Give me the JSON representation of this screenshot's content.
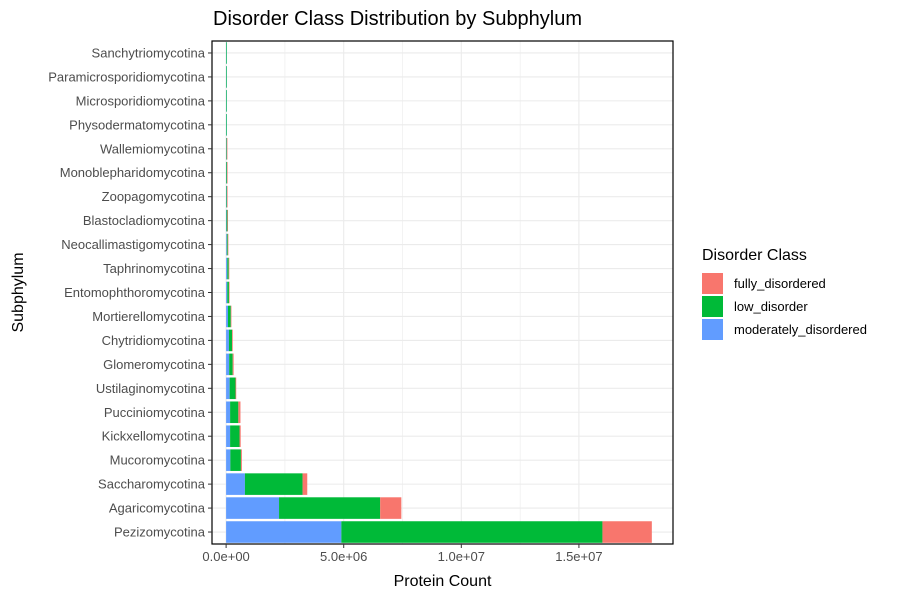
{
  "chart_data": {
    "type": "bar",
    "orientation": "horizontal",
    "stacked": true,
    "title": "Disorder Class Distribution by Subphylum",
    "xlabel": "Protein Count",
    "ylabel": "Subphylum",
    "xlim": [
      -600000,
      19000000
    ],
    "x_ticks": [
      0,
      5000000,
      10000000,
      15000000
    ],
    "x_tick_labels": [
      "0.0e+00",
      "5.0e+06",
      "1.0e+07",
      "1.5e+07"
    ],
    "grid": true,
    "legend_position": "right",
    "categories": [
      "Pezizomycotina",
      "Agaricomycotina",
      "Saccharomycotina",
      "Mucoromycotina",
      "Kickxellomycotina",
      "Pucciniomycotina",
      "Ustilaginomycotina",
      "Glomeromycotina",
      "Chytridiomycotina",
      "Mortierellomycotina",
      "Entomophthoromycotina",
      "Taphrinomycotina",
      "Neocallimastigomycotina",
      "Blastocladiomycotina",
      "Zoopagomycotina",
      "Monoblepharidomycotina",
      "Wallemiomycotina",
      "Physodermatomycotina",
      "Microsporidiomycotina",
      "Paramicrosporidiomycotina",
      "Sanchytriomycotina"
    ],
    "legend_title": "Disorder Class",
    "series": [
      {
        "name": "moderately_disordered",
        "color": "#619CFF",
        "values": [
          4900000,
          2250000,
          800000,
          180000,
          170000,
          170000,
          150000,
          130000,
          120000,
          80000,
          50000,
          50000,
          30000,
          15000,
          10000,
          5000,
          4000,
          2000,
          1000,
          500,
          300
        ]
      },
      {
        "name": "low_disorder",
        "color": "#00BA38",
        "values": [
          11100000,
          4300000,
          2450000,
          450000,
          400000,
          350000,
          250000,
          150000,
          130000,
          120000,
          70000,
          60000,
          40000,
          40000,
          25000,
          30000,
          25000,
          3000,
          1500,
          1000,
          500
        ]
      },
      {
        "name": "fully_disordered",
        "color": "#F8766D",
        "values": [
          2100000,
          900000,
          200000,
          40000,
          50000,
          90000,
          30000,
          40000,
          30000,
          20000,
          10000,
          10000,
          5000,
          3000,
          2000,
          2000,
          2000,
          0,
          0,
          0,
          0
        ]
      }
    ],
    "legend_order": [
      "fully_disordered",
      "low_disorder",
      "moderately_disordered"
    ]
  }
}
